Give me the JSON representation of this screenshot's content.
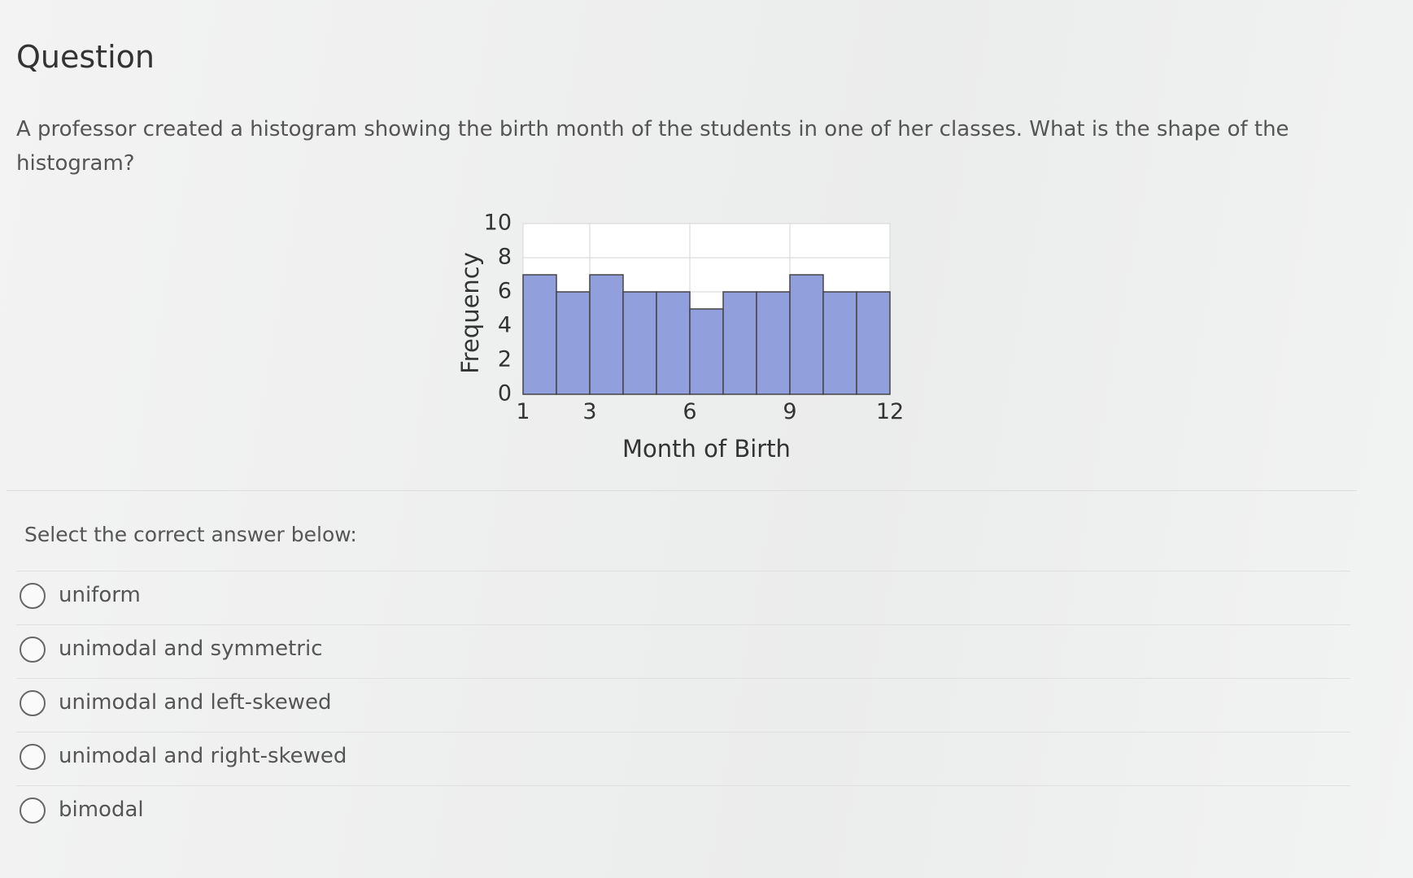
{
  "header": {
    "title": "Question"
  },
  "question": {
    "text": "A professor created a histogram showing the birth month of the students in one of her classes. What is the shape of the histogram?"
  },
  "chart_data": {
    "type": "histogram",
    "xlabel": "Month of Birth",
    "ylabel": "Frequency",
    "bins": [
      1,
      2,
      3,
      4,
      5,
      6,
      7,
      8,
      9,
      10,
      11,
      12
    ],
    "counts": [
      7,
      6,
      7,
      6,
      6,
      5,
      6,
      6,
      7,
      6,
      6
    ],
    "color": "#929fdd",
    "xlim": [
      1,
      12
    ],
    "ylim": [
      0,
      10
    ],
    "xticks": [
      1,
      3,
      6,
      9,
      12
    ],
    "yticks": [
      0,
      2,
      4,
      6,
      8,
      10
    ],
    "grid": true
  },
  "answers": {
    "prompt": "Select the correct answer below:",
    "options": [
      "uniform",
      "unimodal and symmetric",
      "unimodal and left-skewed",
      "unimodal and right-skewed",
      "bimodal"
    ]
  }
}
